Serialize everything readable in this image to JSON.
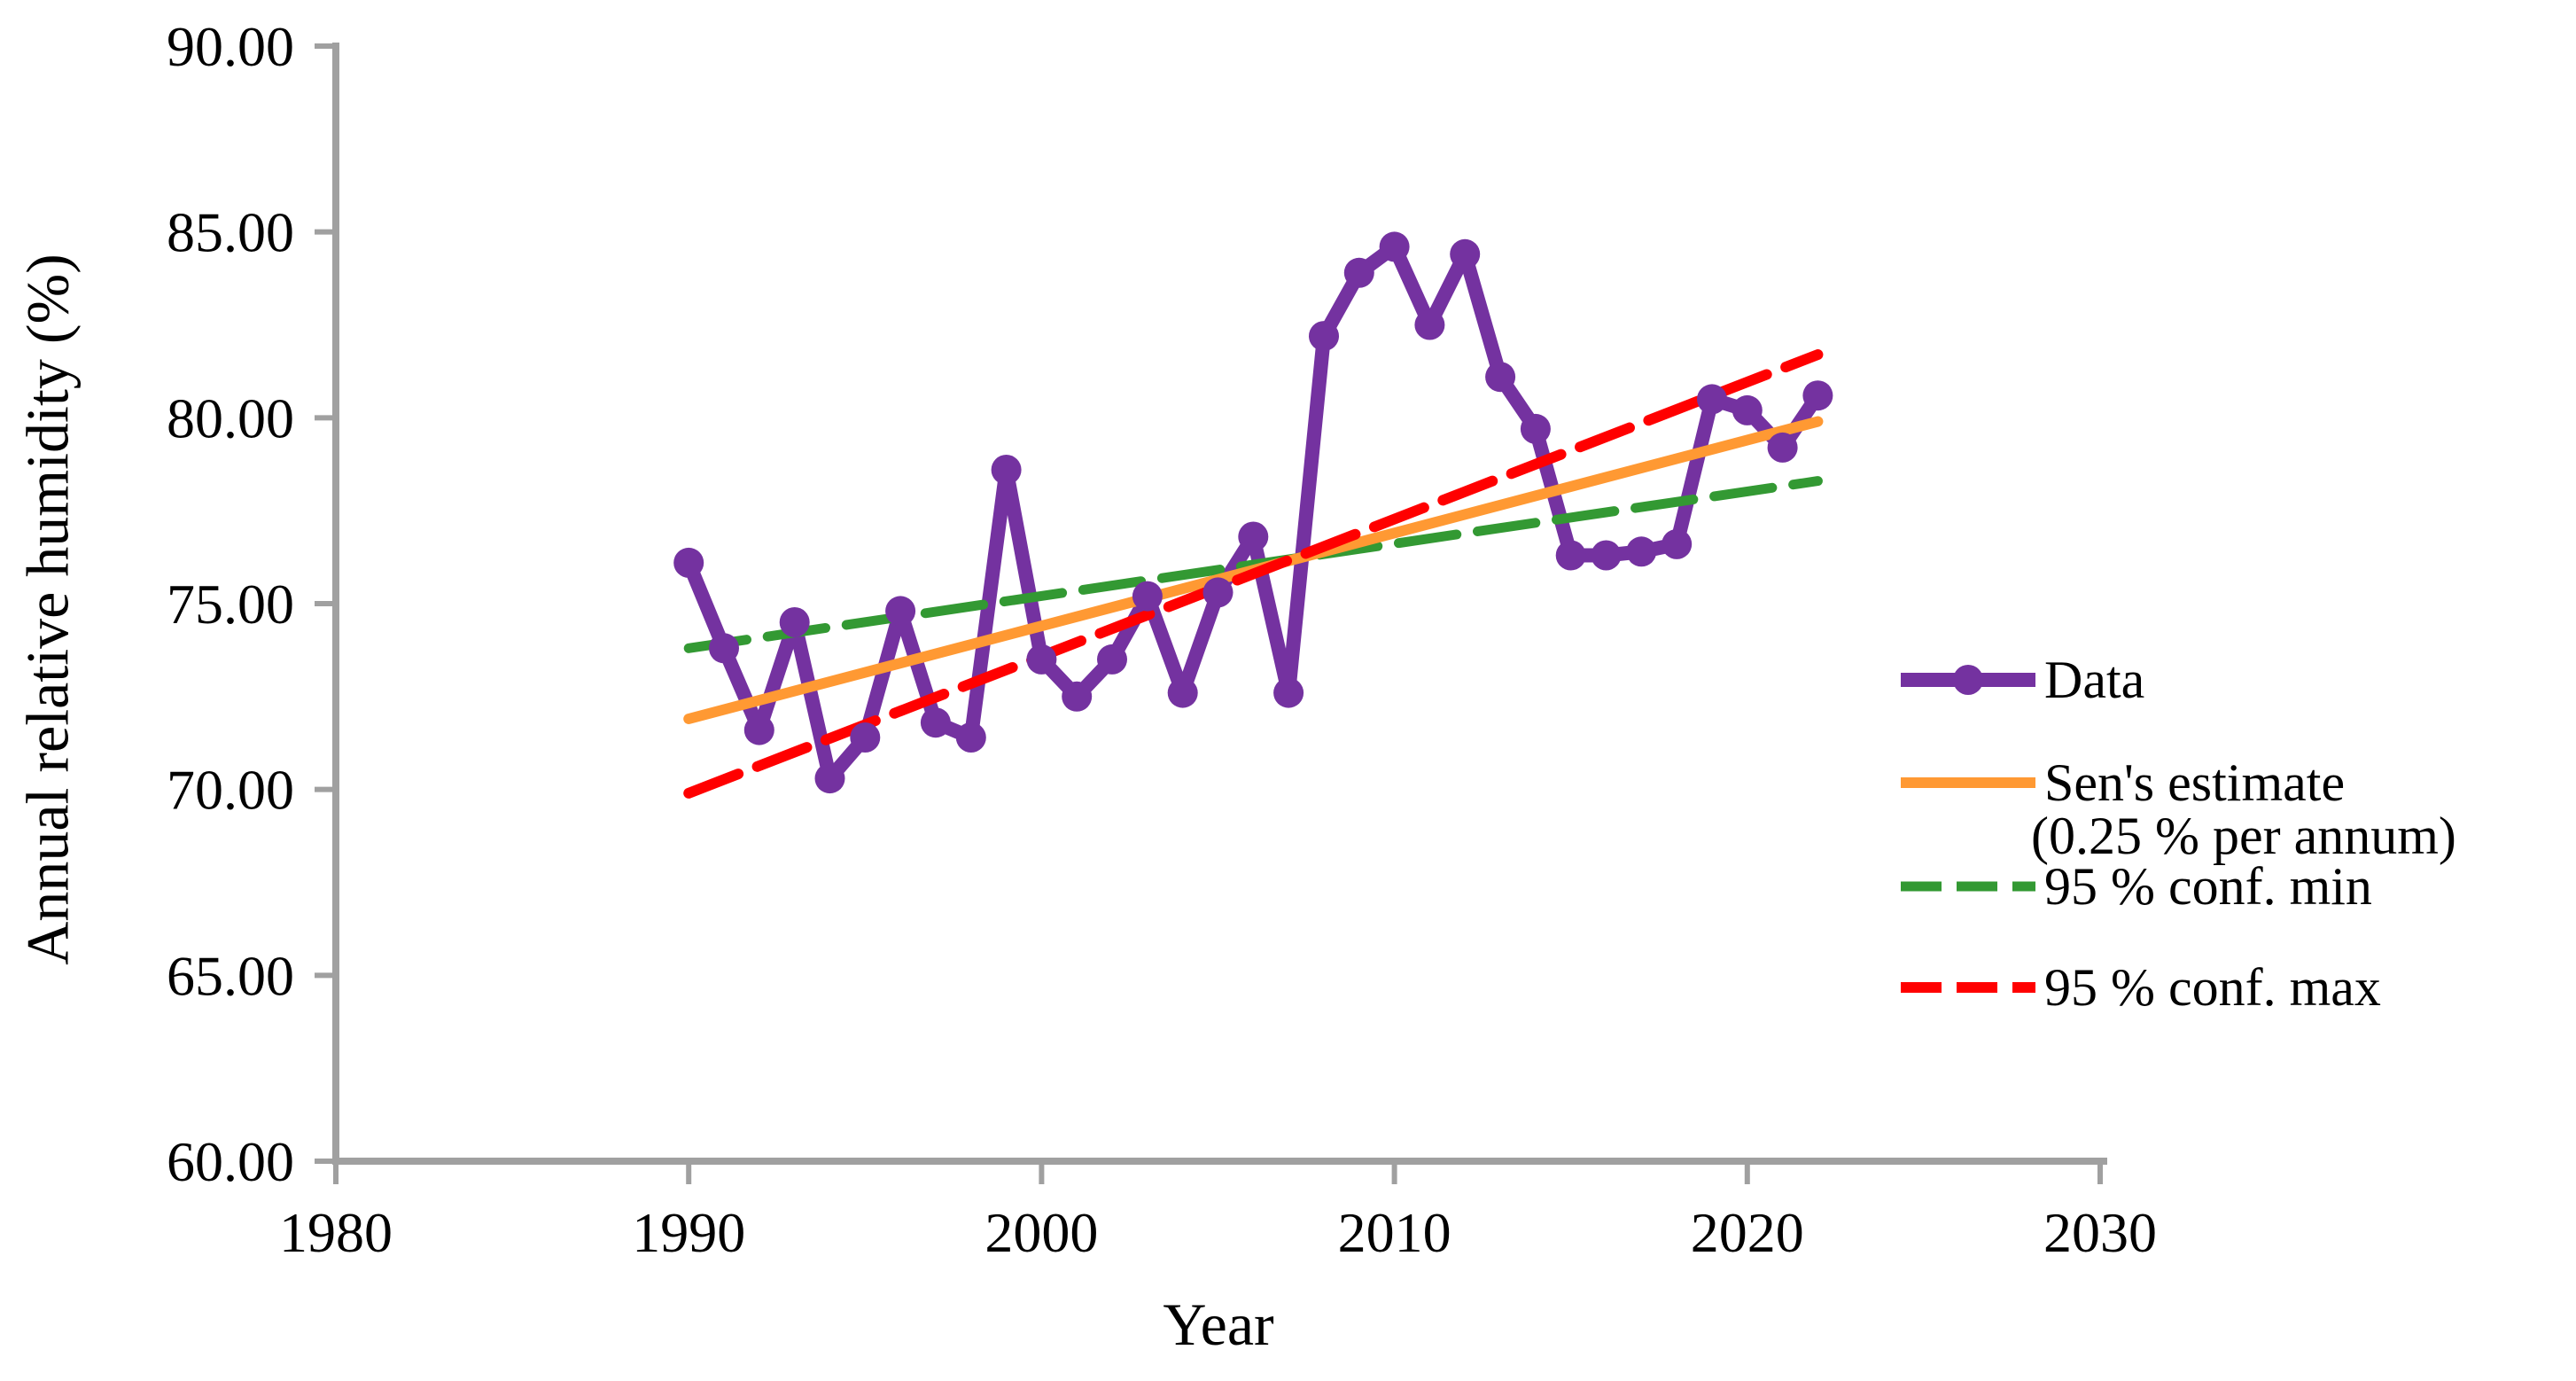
{
  "colors": {
    "data": "#7432A0",
    "sen": "#FF9933",
    "confmin": "#339933",
    "confmax": "#FF0000",
    "axis": "#A0A0A0",
    "text": "#000000"
  },
  "axes": {
    "x": {
      "title": "Year",
      "tick_labels": [
        "1980",
        "1990",
        "2000",
        "2010",
        "2020",
        "2030"
      ]
    },
    "y": {
      "title": "Annual relative humidity (%)",
      "tick_labels": [
        "90.00",
        "85.00",
        "80.00",
        "75.00",
        "70.00",
        "65.00",
        "60.00"
      ]
    }
  },
  "legend": {
    "items": [
      {
        "label": "Data"
      },
      {
        "label": "Sen's estimate",
        "label2": "(0.25 % per annum)"
      },
      {
        "label": "95 % conf. min"
      },
      {
        "label": "95 % conf. max"
      }
    ]
  },
  "chart_data": {
    "type": "line",
    "title": "",
    "xlabel": "Year",
    "ylabel": "Annual relative humidity (%)",
    "xlim": [
      1980,
      2030
    ],
    "ylim": [
      60,
      90
    ],
    "x_ticks": [
      1980,
      1990,
      2000,
      2010,
      2020,
      2030
    ],
    "y_ticks": [
      90,
      85,
      80,
      75,
      70,
      65,
      60
    ],
    "grid": false,
    "legend_position": "right",
    "years": [
      1990,
      1991,
      1992,
      1993,
      1994,
      1995,
      1996,
      1997,
      1998,
      1999,
      2000,
      2001,
      2002,
      2003,
      2004,
      2005,
      2006,
      2007,
      2008,
      2009,
      2010,
      2011,
      2012,
      2013,
      2014,
      2015,
      2016,
      2017,
      2018,
      2019,
      2020,
      2021,
      2022
    ],
    "series": [
      {
        "name": "Data",
        "type": "line+markers",
        "color": "#7432A0",
        "values": [
          76.1,
          73.8,
          71.6,
          74.5,
          70.3,
          71.4,
          74.8,
          71.8,
          71.4,
          78.6,
          73.5,
          72.5,
          73.5,
          75.2,
          72.6,
          75.3,
          76.8,
          72.6,
          82.2,
          83.9,
          84.6,
          82.5,
          84.4,
          81.1,
          79.7,
          76.3,
          76.3,
          76.4,
          76.6,
          80.5,
          80.2,
          79.2,
          80.6
        ]
      },
      {
        "name": "Sen's estimate (0.25 % per annum)",
        "type": "trend-solid",
        "color": "#FF9933",
        "slope_pct_per_annum": 0.25,
        "start": {
          "year": 1990,
          "value": 71.9
        },
        "end": {
          "year": 2022,
          "value": 79.9
        }
      },
      {
        "name": "95 % conf. min",
        "type": "trend-dashed",
        "color": "#339933",
        "start": {
          "year": 1990,
          "value": 73.8
        },
        "end": {
          "year": 2022,
          "value": 78.3
        }
      },
      {
        "name": "95 % conf. max",
        "type": "trend-dashed",
        "color": "#FF0000",
        "start": {
          "year": 1990,
          "value": 69.9
        },
        "end": {
          "year": 2022,
          "value": 81.7
        }
      }
    ]
  }
}
